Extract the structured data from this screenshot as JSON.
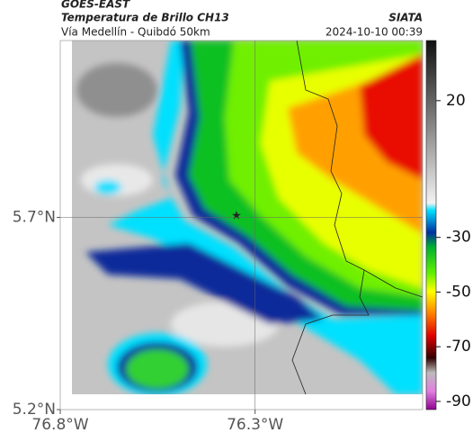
{
  "header": {
    "source": "GOES-EAST",
    "title": "Temperatura de Brillo CH13",
    "subtitle": "Vía Medellín - Quibdó 50km",
    "brand": "SIATA",
    "timestamp": "2024-10-10 00:39"
  },
  "map": {
    "xlim": [
      -76.8,
      -75.87
    ],
    "ylim": [
      5.2,
      6.16
    ],
    "xticks": [
      {
        "value": -76.8,
        "label": "76.8°W"
      },
      {
        "value": -76.3,
        "label": "76.3°W"
      }
    ],
    "yticks": [
      {
        "value": 5.2,
        "label": "5.2°N"
      },
      {
        "value": 5.7,
        "label": "5.7°N"
      }
    ],
    "grid": true,
    "colorbar": {
      "clim": [
        -93,
        42
      ],
      "ticks": [
        20,
        -30,
        -50,
        -70,
        -90
      ]
    }
  }
}
